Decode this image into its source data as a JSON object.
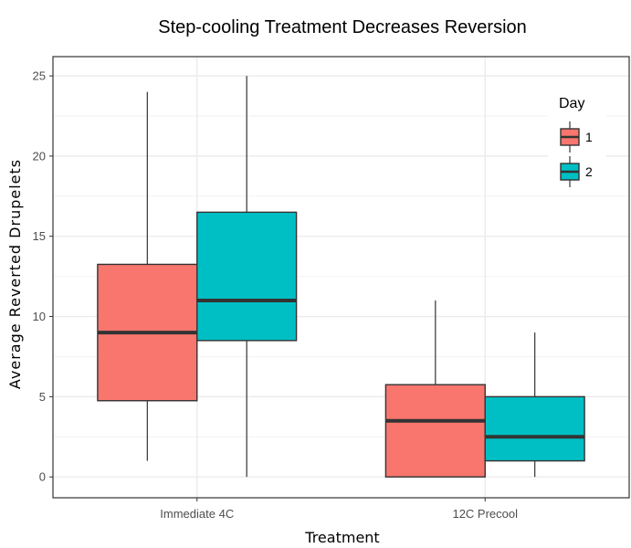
{
  "chart_data": {
    "type": "box",
    "title": "Step-cooling Treatment Decreases Reversion",
    "xlabel": "Treatment",
    "ylabel": "Average Reverted Drupelets",
    "categories": [
      "Immediate 4C",
      "12C Precool"
    ],
    "ylim": [
      -1.3,
      26.2
    ],
    "yticks": [
      0,
      5,
      10,
      15,
      20,
      25
    ],
    "grid": true,
    "legend": {
      "title": "Day",
      "position": "top-right",
      "entries": [
        {
          "label": "1",
          "color": "#F8766D"
        },
        {
          "label": "2",
          "color": "#00BFC4"
        }
      ]
    },
    "series": [
      {
        "day": "1",
        "color": "#F8766D",
        "boxes": [
          {
            "category": "Immediate 4C",
            "min": 1,
            "q1": 4.75,
            "median": 9,
            "q3": 13.25,
            "max": 24
          },
          {
            "category": "12C Precool",
            "min": 0,
            "q1": 0,
            "median": 3.5,
            "q3": 5.75,
            "max": 11
          }
        ]
      },
      {
        "day": "2",
        "color": "#00BFC4",
        "boxes": [
          {
            "category": "Immediate 4C",
            "min": 0,
            "q1": 8.5,
            "median": 11,
            "q3": 16.5,
            "max": 25
          },
          {
            "category": "12C Precool",
            "min": 0,
            "q1": 1,
            "median": 2.5,
            "q3": 5,
            "max": 9
          }
        ]
      }
    ]
  }
}
